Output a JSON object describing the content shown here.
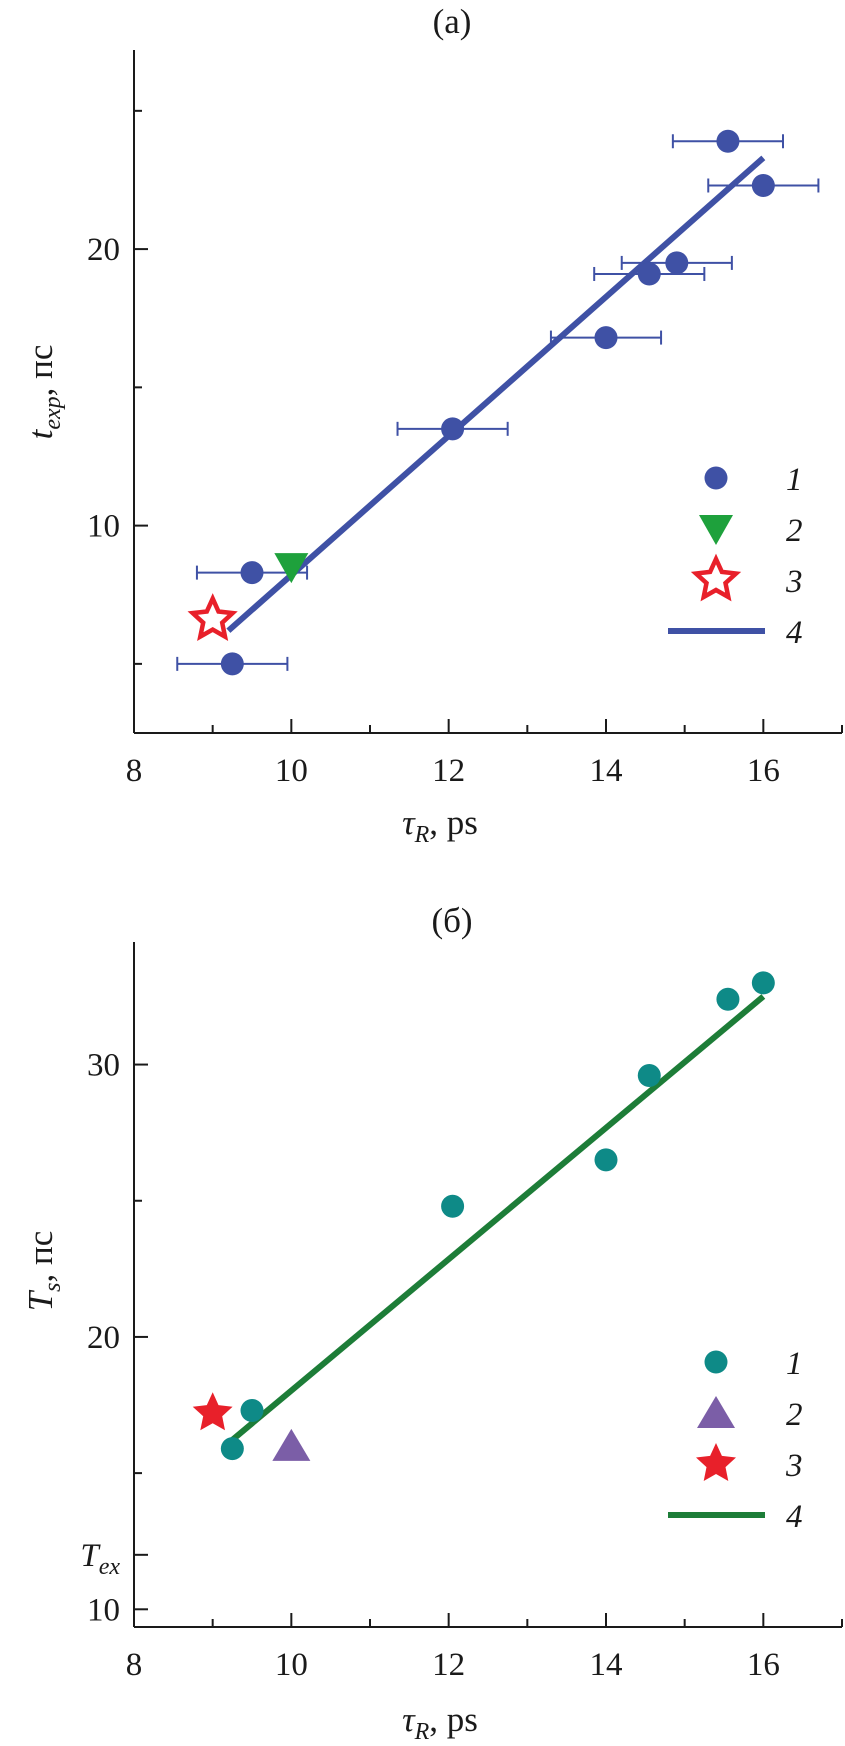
{
  "chart_data": [
    {
      "type": "scatter",
      "title": "(a)",
      "xlabel": {
        "main": "τ",
        "sub": "R",
        "rest": ", ps"
      },
      "ylabel": {
        "main": "t",
        "sub": "exp",
        "rest": ", пс"
      },
      "xlim": [
        8,
        17
      ],
      "ylim": [
        2.5,
        27.2
      ],
      "xticks": [
        8,
        10,
        12,
        14,
        16
      ],
      "yticks": [
        10,
        20
      ],
      "grid": false,
      "legend": "right",
      "colors": {
        "points": "#3f51a5",
        "triangle": "#1ea13c",
        "star": "#e8202a",
        "line": "#3f51a5"
      },
      "series": [
        {
          "name": "1",
          "marker": "circle",
          "points": [
            {
              "x": 15.55,
              "y": 23.9,
              "xerr": 0.7
            },
            {
              "x": 16.0,
              "y": 22.3,
              "xerr": 0.7
            },
            {
              "x": 14.9,
              "y": 19.5,
              "xerr": 0.7
            },
            {
              "x": 14.55,
              "y": 19.1,
              "xerr": 0.7
            },
            {
              "x": 14.0,
              "y": 16.8,
              "xerr": 0.7
            },
            {
              "x": 12.05,
              "y": 13.5,
              "xerr": 0.7
            },
            {
              "x": 9.5,
              "y": 8.3,
              "xerr": 0.7
            },
            {
              "x": 9.25,
              "y": 5.0,
              "xerr": 0.7
            }
          ]
        },
        {
          "name": "2",
          "marker": "triangle-down",
          "points": [
            {
              "x": 10.0,
              "y": 8.5
            }
          ]
        },
        {
          "name": "3",
          "marker": "star-open",
          "points": [
            {
              "x": 9.0,
              "y": 6.6
            }
          ]
        },
        {
          "name": "4",
          "marker": "line",
          "points": [
            {
              "x": 9.2,
              "y": 6.2
            },
            {
              "x": 16.0,
              "y": 23.3
            }
          ]
        }
      ]
    },
    {
      "type": "scatter",
      "title": "(б)",
      "xlabel": {
        "main": "τ",
        "sub": "R",
        "rest": ", ps"
      },
      "ylabel": {
        "main": "T",
        "sub": "s",
        "rest": ", пс"
      },
      "xlim": [
        8,
        17
      ],
      "ylim": [
        9.35,
        34.5
      ],
      "xticks": [
        8,
        10,
        12,
        14,
        16
      ],
      "yticks": [
        10,
        20,
        30
      ],
      "extra_ytick": {
        "value": 12,
        "main": "T",
        "sub": "ex"
      },
      "grid": false,
      "legend": "right",
      "colors": {
        "points": "#0e8a87",
        "triangle": "#7b5ea7",
        "star": "#e8202a",
        "line": "#1d7d38"
      },
      "series": [
        {
          "name": "1",
          "marker": "circle",
          "points": [
            {
              "x": 16.0,
              "y": 33.0
            },
            {
              "x": 15.55,
              "y": 32.4
            },
            {
              "x": 14.55,
              "y": 29.6
            },
            {
              "x": 14.0,
              "y": 26.5
            },
            {
              "x": 12.05,
              "y": 24.8
            },
            {
              "x": 9.5,
              "y": 17.3
            },
            {
              "x": 9.25,
              "y": 15.9
            }
          ]
        },
        {
          "name": "2",
          "marker": "triangle-up",
          "points": [
            {
              "x": 10.0,
              "y": 16.0
            }
          ]
        },
        {
          "name": "3",
          "marker": "star-filled",
          "points": [
            {
              "x": 9.0,
              "y": 17.2
            }
          ]
        },
        {
          "name": "4",
          "marker": "line",
          "points": [
            {
              "x": 9.2,
              "y": 16.1
            },
            {
              "x": 16.0,
              "y": 32.5
            }
          ]
        }
      ]
    }
  ]
}
